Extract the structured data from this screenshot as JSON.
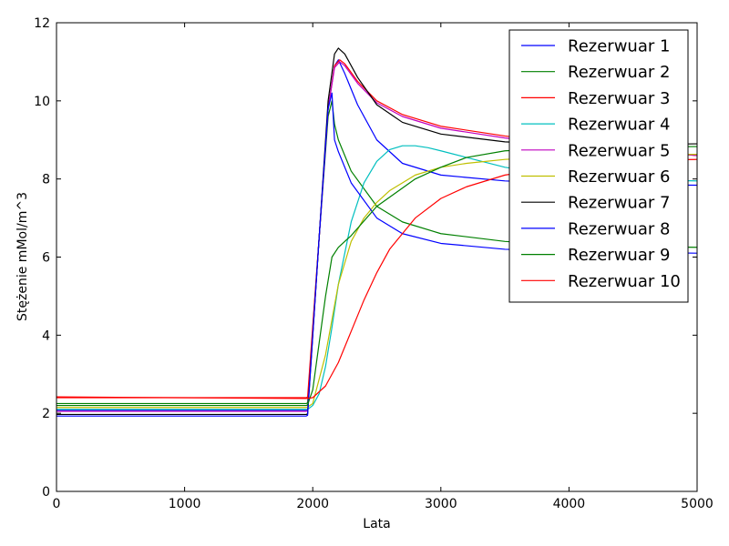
{
  "chart_data": {
    "type": "line",
    "title": "",
    "xlabel": "Lata",
    "ylabel": "Stężenie mMol/m^3",
    "xlim": [
      0,
      5000
    ],
    "ylim": [
      0,
      12
    ],
    "xticks": [
      0,
      1000,
      2000,
      3000,
      4000,
      5000
    ],
    "yticks": [
      0,
      2,
      4,
      6,
      8,
      10,
      12
    ],
    "grid": false,
    "legend_position": "top-right",
    "series": [
      {
        "name": "Rezerwuar 1",
        "color": "#0000ff",
        "x": [
          0,
          1950,
          1960,
          2050,
          2120,
          2170,
          2200,
          2250,
          2350,
          2500,
          2700,
          3000,
          3500,
          4000,
          4500,
          5000
        ],
        "y": [
          2.08,
          2.08,
          2.1,
          6.5,
          9.8,
          10.9,
          11.05,
          10.7,
          9.9,
          9.0,
          8.4,
          8.1,
          7.95,
          7.88,
          7.85,
          7.84
        ]
      },
      {
        "name": "Rezerwuar 2",
        "color": "#008000",
        "x": [
          0,
          1950,
          1960,
          2050,
          2120,
          2150,
          2170,
          2200,
          2300,
          2500,
          2700,
          3000,
          3500,
          4000,
          4500,
          5000
        ],
        "y": [
          2.25,
          2.25,
          2.27,
          6.5,
          9.6,
          10.0,
          9.4,
          9.0,
          8.2,
          7.3,
          6.9,
          6.6,
          6.4,
          6.3,
          6.27,
          6.25
        ]
      },
      {
        "name": "Rezerwuar 3",
        "color": "#ff0000",
        "x": [
          0,
          1950,
          1960,
          2050,
          2120,
          2170,
          2210,
          2250,
          2350,
          2500,
          2700,
          3000,
          3500,
          4000,
          4500,
          5000
        ],
        "y": [
          2.4,
          2.4,
          2.42,
          6.5,
          9.8,
          10.9,
          11.05,
          10.95,
          10.5,
          10.0,
          9.65,
          9.35,
          9.1,
          8.9,
          8.75,
          8.6
        ]
      },
      {
        "name": "Rezerwuar 4",
        "color": "#00bfbf",
        "x": [
          0,
          1950,
          1960,
          2000,
          2050,
          2100,
          2150,
          2200,
          2300,
          2400,
          2500,
          2600,
          2700,
          2800,
          2900,
          3000,
          3200,
          3500,
          3800,
          4000,
          4500,
          5000
        ],
        "y": [
          2.1,
          2.1,
          2.1,
          2.2,
          2.5,
          3.2,
          4.2,
          5.3,
          6.9,
          7.9,
          8.45,
          8.75,
          8.85,
          8.85,
          8.8,
          8.72,
          8.55,
          8.3,
          8.15,
          8.07,
          7.98,
          7.95
        ]
      },
      {
        "name": "Rezerwuar 5",
        "color": "#bf00bf",
        "x": [
          0,
          1950,
          1960,
          2050,
          2120,
          2170,
          2210,
          2250,
          2350,
          2500,
          2700,
          3000,
          3500,
          4000,
          4500,
          5000
        ],
        "y": [
          2.05,
          2.05,
          2.07,
          6.5,
          9.8,
          10.85,
          11.0,
          10.9,
          10.45,
          9.95,
          9.6,
          9.3,
          9.05,
          8.85,
          8.72,
          8.6
        ]
      },
      {
        "name": "Rezerwuar 6",
        "color": "#bfbf00",
        "x": [
          0,
          1950,
          1960,
          2000,
          2100,
          2200,
          2300,
          2400,
          2500,
          2600,
          2800,
          3000,
          3200,
          3500,
          4000,
          4500,
          5000
        ],
        "y": [
          2.15,
          2.15,
          2.16,
          2.25,
          3.5,
          5.3,
          6.4,
          7.0,
          7.4,
          7.7,
          8.1,
          8.3,
          8.4,
          8.5,
          8.58,
          8.62,
          8.63
        ]
      },
      {
        "name": "Rezerwuar 7",
        "color": "#000000",
        "x": [
          0,
          1950,
          1960,
          2050,
          2120,
          2170,
          2200,
          2250,
          2350,
          2500,
          2700,
          3000,
          3500,
          4000,
          4500,
          5000
        ],
        "y": [
          1.97,
          1.97,
          1.99,
          6.5,
          10.0,
          11.2,
          11.35,
          11.2,
          10.6,
          9.9,
          9.45,
          9.15,
          8.95,
          8.88,
          8.88,
          8.9
        ]
      },
      {
        "name": "Rezerwuar 8",
        "color": "#0000ff",
        "x": [
          0,
          1950,
          1960,
          2050,
          2120,
          2150,
          2170,
          2200,
          2300,
          2500,
          2700,
          3000,
          3500,
          4000,
          4500,
          5000
        ],
        "y": [
          1.93,
          1.93,
          1.95,
          6.5,
          9.8,
          10.2,
          9.0,
          8.7,
          7.9,
          7.0,
          6.6,
          6.35,
          6.2,
          6.15,
          6.12,
          6.1
        ]
      },
      {
        "name": "Rezerwuar 9",
        "color": "#008000",
        "x": [
          0,
          1950,
          1960,
          2000,
          2050,
          2100,
          2150,
          2200,
          2300,
          2500,
          2800,
          3000,
          3200,
          3500,
          4000,
          4500,
          5000
        ],
        "y": [
          2.2,
          2.2,
          2.22,
          2.6,
          3.8,
          5.0,
          6.0,
          6.25,
          6.55,
          7.3,
          8.0,
          8.3,
          8.55,
          8.72,
          8.8,
          8.82,
          8.83
        ]
      },
      {
        "name": "Rezerwuar 10",
        "color": "#ff0000",
        "x": [
          0,
          1950,
          2000,
          2100,
          2200,
          2300,
          2400,
          2500,
          2600,
          2800,
          3000,
          3200,
          3500,
          4000,
          4500,
          5000
        ],
        "y": [
          2.42,
          2.38,
          2.4,
          2.7,
          3.3,
          4.1,
          4.9,
          5.6,
          6.2,
          7.0,
          7.5,
          7.8,
          8.1,
          8.35,
          8.48,
          8.5
        ]
      }
    ]
  }
}
